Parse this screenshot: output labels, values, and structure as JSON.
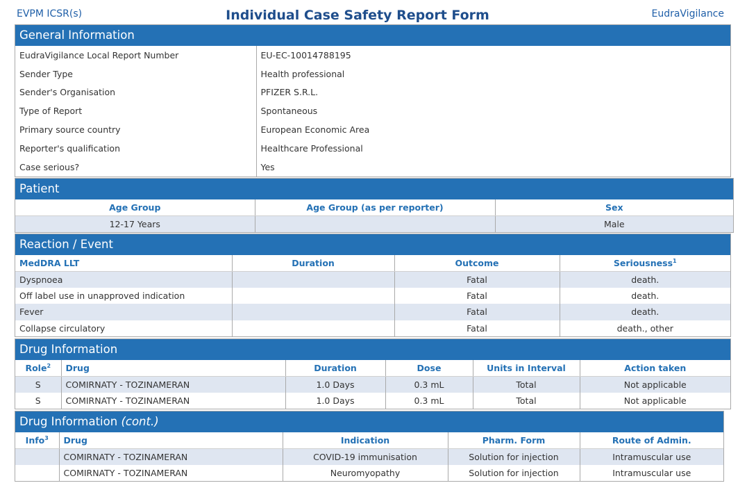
{
  "header": {
    "left": "EVPM ICSR(s)",
    "title": "Individual Case Safety Report Form",
    "right": "EudraVigilance"
  },
  "general": {
    "title": "General Information",
    "rows": [
      {
        "label": "EudraVigilance Local Report Number",
        "value": "EU-EC-10014788195"
      },
      {
        "label": "Sender Type",
        "value": "Health professional"
      },
      {
        "label": "Sender's Organisation",
        "value": "PFIZER S.R.L."
      },
      {
        "label": "Type of Report",
        "value": "Spontaneous"
      },
      {
        "label": "Primary source country",
        "value": "European Economic Area"
      },
      {
        "label": "Reporter's qualification",
        "value": "Healthcare Professional"
      },
      {
        "label": "Case serious?",
        "value": "Yes"
      }
    ]
  },
  "patient": {
    "title": "Patient",
    "headers": [
      "Age Group",
      "Age Group (as per reporter)",
      "Sex"
    ],
    "row": [
      "12-17 Years",
      "",
      "Male"
    ]
  },
  "reaction": {
    "title": "Reaction / Event",
    "headers": [
      "MedDRA LLT",
      "Duration",
      "Outcome",
      "Seriousness"
    ],
    "seriousness_sup": "1",
    "rows": [
      [
        "Dyspnoea",
        "",
        "Fatal",
        "death."
      ],
      [
        "Off label use in unapproved indication",
        "",
        "Fatal",
        "death."
      ],
      [
        "Fever",
        "",
        "Fatal",
        "death."
      ],
      [
        "Collapse circulatory",
        "",
        "Fatal",
        "death., other"
      ]
    ]
  },
  "drug": {
    "title": "Drug Information",
    "headers": [
      "Role",
      "Drug",
      "Duration",
      "Dose",
      "Units in Interval",
      "Action taken"
    ],
    "role_sup": "2",
    "rows": [
      [
        "S",
        "COMIRNATY - TOZINAMERAN",
        "1.0 Days",
        "0.3 mL",
        "Total",
        "Not applicable"
      ],
      [
        "S",
        "COMIRNATY - TOZINAMERAN",
        "1.0 Days",
        "0.3 mL",
        "Total",
        "Not applicable"
      ]
    ]
  },
  "drug_cont": {
    "title": "Drug Information",
    "title_suffix": "(cont.)",
    "headers": [
      "Info",
      "Drug",
      "Indication",
      "Pharm. Form",
      "Route of Admin."
    ],
    "info_sup": "3",
    "rows": [
      [
        "",
        "COMIRNATY - TOZINAMERAN",
        "COVID-19 immunisation",
        "Solution for injection",
        "Intramuscular use"
      ],
      [
        "",
        "COMIRNATY - TOZINAMERAN",
        "Neuromyopathy",
        "Solution for injection",
        "Intramuscular use"
      ]
    ]
  }
}
